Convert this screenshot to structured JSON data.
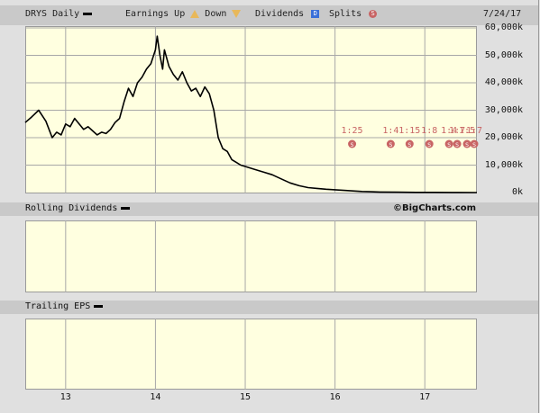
{
  "header": {
    "ticker_label": "DRYS Daily",
    "earnings_up_label": "Earnings Up",
    "down_label": "Down",
    "dividends_label": "Dividends",
    "dividends_badge": "D",
    "splits_label": "Splits",
    "splits_badge": "S",
    "date": "7/24/17"
  },
  "panels": {
    "rolling_dividends_label": "Rolling Dividends",
    "trailing_eps_label": "Trailing EPS",
    "source_credit": "©BigCharts.com"
  },
  "colors": {
    "panel_bg": "#ffffe0",
    "price_line": "#000000",
    "split_marker": "#c86464",
    "earnings_up": "#e8b85a",
    "dividend_badge": "#3a6fd8",
    "grid": "#a8a8a8"
  },
  "chart_data": {
    "type": "line",
    "title": "DRYS Daily",
    "ylim": [
      0,
      60000
    ],
    "yticks": [
      0,
      10000,
      20000,
      30000,
      40000,
      50000,
      60000
    ],
    "ytick_labels": [
      "0k",
      "10,000k",
      "20,000k",
      "30,000k",
      "40,000k",
      "50,000k",
      "60,000k"
    ],
    "xlim": [
      2012.55,
      2017.58
    ],
    "xticks": [
      2013,
      2014,
      2015,
      2016,
      2017
    ],
    "xtick_labels": [
      "13",
      "14",
      "15",
      "16",
      "17"
    ],
    "grid": true,
    "series": [
      {
        "x": [
          2012.55,
          2012.62,
          2012.7,
          2012.78,
          2012.85,
          2012.9,
          2012.95,
          2013.0,
          2013.05,
          2013.1,
          2013.15,
          2013.2,
          2013.25,
          2013.3,
          2013.35,
          2013.4,
          2013.45,
          2013.5,
          2013.55,
          2013.6,
          2013.65,
          2013.7,
          2013.75,
          2013.8,
          2013.85,
          2013.9,
          2013.95,
          2014.0,
          2014.02,
          2014.05,
          2014.08,
          2014.1,
          2014.15,
          2014.2,
          2014.25,
          2014.3,
          2014.35,
          2014.4,
          2014.45,
          2014.5,
          2014.55,
          2014.6,
          2014.65,
          2014.7,
          2014.75,
          2014.8,
          2014.85,
          2014.9,
          2014.95,
          2015.0,
          2015.1,
          2015.2,
          2015.3,
          2015.4,
          2015.5,
          2015.6,
          2015.7,
          2015.8,
          2015.9,
          2016.0,
          2016.1,
          2016.2,
          2016.3,
          2016.4,
          2016.5,
          2016.7,
          2016.9,
          2017.1,
          2017.3,
          2017.58
        ],
        "y": [
          25500,
          27500,
          30000,
          26000,
          20000,
          22000,
          21000,
          25000,
          24000,
          27000,
          25000,
          23000,
          24000,
          22500,
          21000,
          22000,
          21500,
          23000,
          25500,
          27000,
          33000,
          38000,
          35000,
          40000,
          42000,
          45000,
          47000,
          52000,
          57000,
          50000,
          45000,
          52000,
          46000,
          43000,
          41000,
          44000,
          40000,
          37000,
          38000,
          35000,
          38500,
          36000,
          30000,
          20000,
          16000,
          15000,
          12000,
          11000,
          10000,
          9500,
          8500,
          7500,
          6500,
          5000,
          3500,
          2500,
          1800,
          1500,
          1200,
          1000,
          800,
          600,
          400,
          300,
          200,
          120,
          80,
          50,
          20,
          5
        ]
      }
    ],
    "annotations": [
      {
        "x": 2016.19,
        "label": "1:25"
      },
      {
        "x": 2016.62,
        "label": "1:4"
      },
      {
        "x": 2016.83,
        "label": "1:15"
      },
      {
        "x": 2017.05,
        "label": "1:8"
      },
      {
        "x": 2017.27,
        "label": "1:4"
      },
      {
        "x": 2017.36,
        "label": "1:7"
      },
      {
        "x": 2017.47,
        "label": "1:5"
      },
      {
        "x": 2017.55,
        "label": "1:7"
      }
    ]
  }
}
